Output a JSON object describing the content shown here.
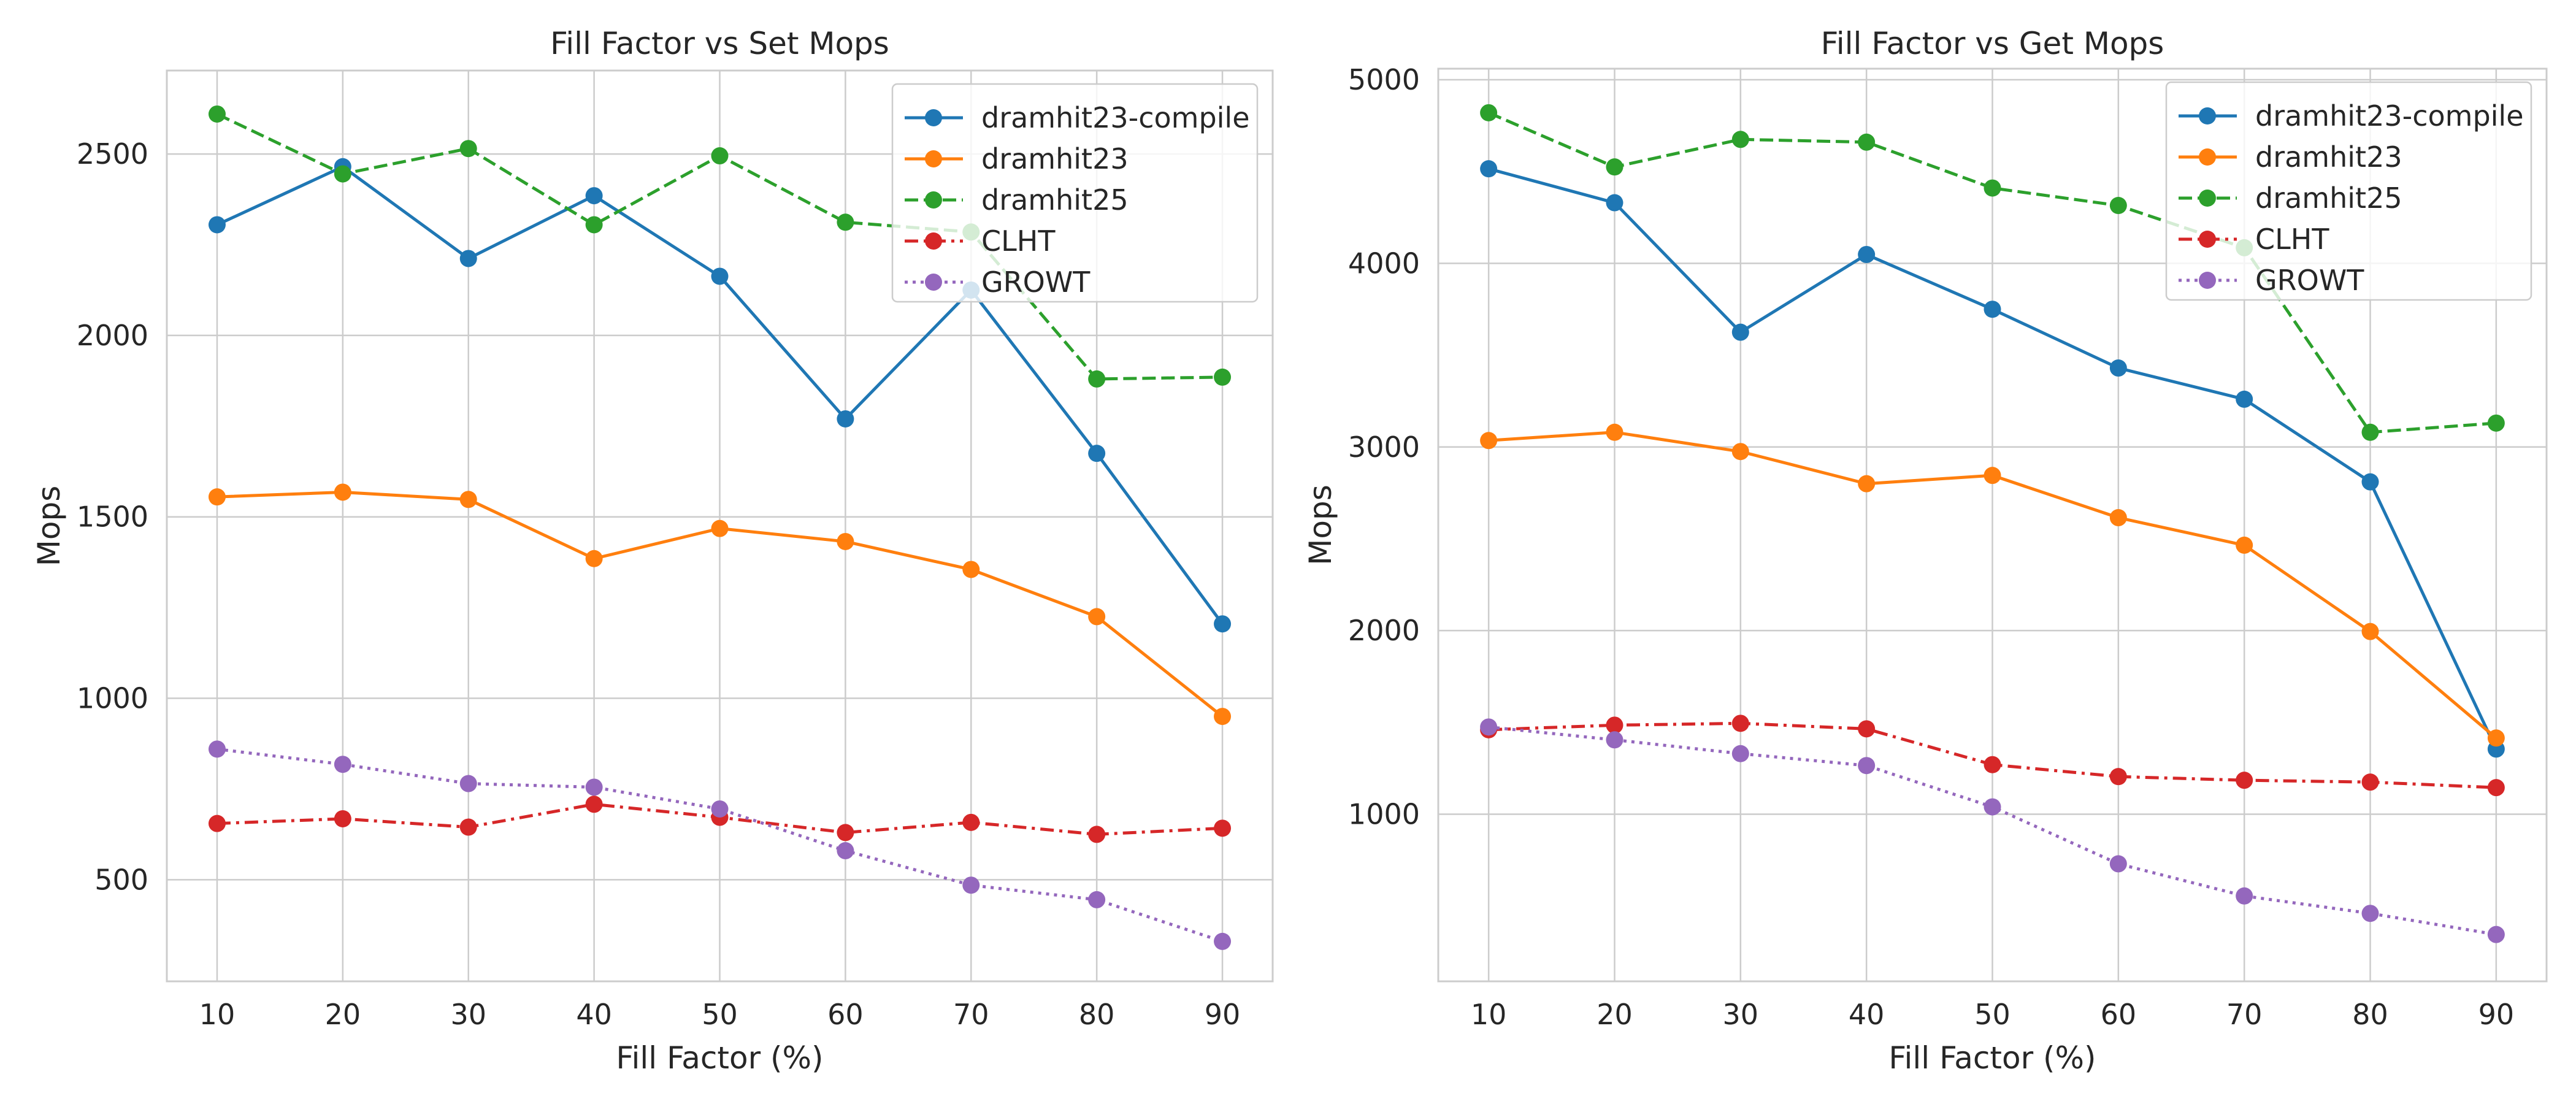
{
  "chart_data": [
    {
      "type": "line",
      "title": "Fill Factor vs Set Mops",
      "xlabel": "Fill Factor (%)",
      "ylabel": "Mops",
      "x": [
        10,
        20,
        30,
        40,
        50,
        60,
        70,
        80,
        90
      ],
      "xlim": [
        6,
        94
      ],
      "ylim": [
        220,
        2730
      ],
      "xticks": [
        10,
        20,
        30,
        40,
        50,
        60,
        70,
        80,
        90
      ],
      "yticks": [
        500,
        1000,
        1500,
        2000,
        2500
      ],
      "grid": true,
      "legend_position": "top-right",
      "series": [
        {
          "name": "dramhit23-compile",
          "color": "#1f77b4",
          "dash": "solid",
          "values": [
            2305,
            2465,
            2212,
            2385,
            2163,
            1770,
            2125,
            1675,
            1205
          ]
        },
        {
          "name": "dramhit23",
          "color": "#ff7f0e",
          "dash": "solid",
          "values": [
            1555,
            1568,
            1548,
            1385,
            1468,
            1432,
            1355,
            1225,
            950
          ]
        },
        {
          "name": "dramhit25",
          "color": "#2ca02c",
          "dash": "dashed",
          "values": [
            2610,
            2445,
            2515,
            2305,
            2495,
            2312,
            2285,
            1880,
            1885
          ]
        },
        {
          "name": "CLHT",
          "color": "#d62728",
          "dash": "dashdot",
          "values": [
            655,
            668,
            645,
            708,
            672,
            630,
            658,
            625,
            642
          ]
        },
        {
          "name": "GROWT",
          "color": "#9467bd",
          "dash": "dotted",
          "values": [
            860,
            818,
            765,
            755,
            695,
            580,
            485,
            445,
            330
          ]
        }
      ]
    },
    {
      "type": "line",
      "title": "Fill Factor vs Get Mops",
      "xlabel": "Fill Factor (%)",
      "ylabel": "Mops",
      "x": [
        10,
        20,
        30,
        40,
        50,
        60,
        70,
        80,
        90
      ],
      "xlim": [
        6,
        94
      ],
      "ylim": [
        90,
        5060
      ],
      "xticks": [
        10,
        20,
        30,
        40,
        50,
        60,
        70,
        80,
        90
      ],
      "yticks": [
        1000,
        2000,
        3000,
        4000,
        5000
      ],
      "grid": true,
      "legend_position": "top-right",
      "series": [
        {
          "name": "dramhit23-compile",
          "color": "#1f77b4",
          "dash": "solid",
          "values": [
            4515,
            4330,
            3625,
            4048,
            3750,
            3430,
            3260,
            2810,
            1355
          ]
        },
        {
          "name": "dramhit23",
          "color": "#ff7f0e",
          "dash": "solid",
          "values": [
            3035,
            3080,
            2975,
            2800,
            2845,
            2615,
            2465,
            1995,
            1415
          ]
        },
        {
          "name": "dramhit25",
          "color": "#2ca02c",
          "dash": "dashed",
          "values": [
            4820,
            4525,
            4675,
            4660,
            4410,
            4315,
            4085,
            3080,
            3130
          ]
        },
        {
          "name": "CLHT",
          "color": "#d62728",
          "dash": "dashdot",
          "values": [
            1460,
            1485,
            1495,
            1465,
            1270,
            1205,
            1185,
            1175,
            1145
          ]
        },
        {
          "name": "GROWT",
          "color": "#9467bd",
          "dash": "dotted",
          "values": [
            1475,
            1405,
            1330,
            1265,
            1040,
            730,
            555,
            460,
            345
          ]
        }
      ]
    }
  ]
}
